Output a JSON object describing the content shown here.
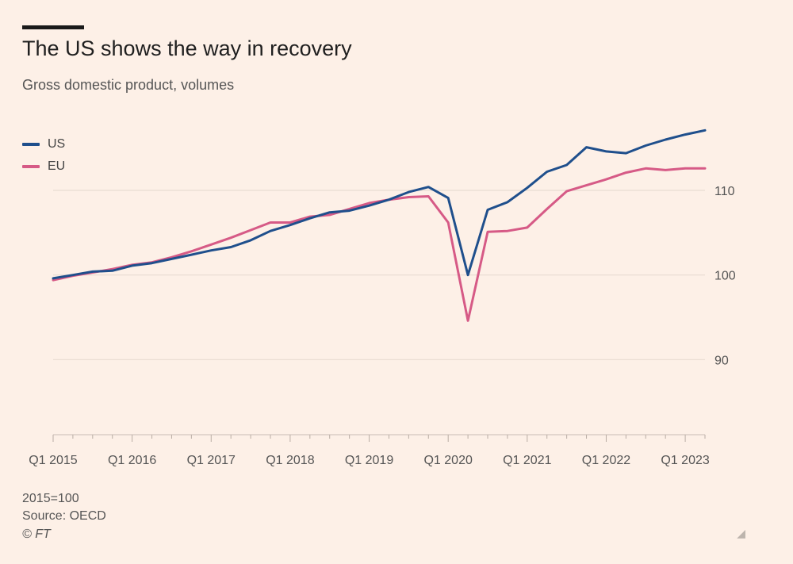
{
  "chart_data": {
    "type": "line",
    "title": "The US shows the way in recovery",
    "subtitle": "Gross domestic product, volumes",
    "xlabel": "",
    "ylabel": "",
    "ylim": [
      80,
      117.5
    ],
    "yticks": [
      90,
      100,
      110
    ],
    "xtick_labels": [
      "Q1 2015",
      "Q1 2016",
      "Q1 2017",
      "Q1 2018",
      "Q1 2019",
      "Q1 2020",
      "Q1 2021",
      "Q1 2022",
      "Q1 2023"
    ],
    "x_quarters_count": 34,
    "legend_position": "top-left",
    "grid": true,
    "series": [
      {
        "name": "US",
        "color": "#1f4f8c",
        "values": [
          99.6,
          100.0,
          100.4,
          100.5,
          101.1,
          101.4,
          101.9,
          102.4,
          102.9,
          103.3,
          104.1,
          105.2,
          105.9,
          106.7,
          107.4,
          107.6,
          108.2,
          108.9,
          109.8,
          110.4,
          109.1,
          100.0,
          107.7,
          108.6,
          110.3,
          112.2,
          113.0,
          115.1,
          114.6,
          114.4,
          115.3,
          116.0,
          116.6,
          117.1
        ]
      },
      {
        "name": "EU",
        "color": "#d65a86",
        "values": [
          99.4,
          99.9,
          100.3,
          100.7,
          101.2,
          101.5,
          102.1,
          102.8,
          103.6,
          104.4,
          105.3,
          106.2,
          106.2,
          106.9,
          107.1,
          107.8,
          108.5,
          108.9,
          109.2,
          109.3,
          106.2,
          94.6,
          105.1,
          105.2,
          105.6,
          107.8,
          109.9,
          110.6,
          111.3,
          112.1,
          112.6,
          112.4,
          112.6,
          112.6
        ]
      }
    ]
  },
  "footer": {
    "base": "2015=100",
    "source": "Source: OECD",
    "copyright": "© FT"
  }
}
